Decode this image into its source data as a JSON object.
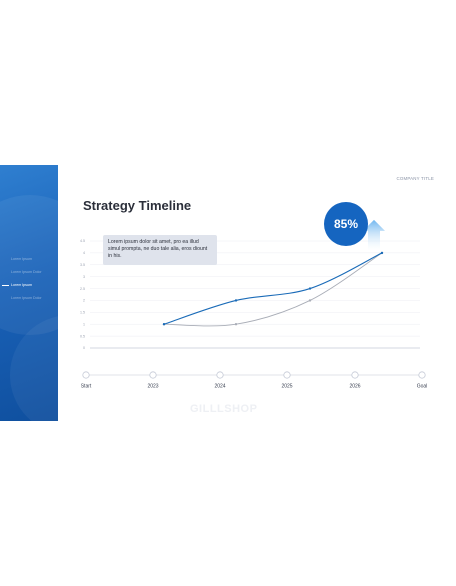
{
  "slide": {
    "company_title": "COMPANY TITLE",
    "title": "Strategy Timeline",
    "note": "Lorem ipsum dolor sit amet, pro ea illud simul prompta, ne duo tale alia, eros diount in his.",
    "watermark": "GILLLSHOP",
    "badge": "85%"
  },
  "sidebar": {
    "items": [
      {
        "label": "Lorem Ipsum",
        "active": false
      },
      {
        "label": "Lorem Ipsum Dolor",
        "active": false
      },
      {
        "label": "Lorem Ipsum",
        "active": true
      },
      {
        "label": "Lorem Ipsum Dolor",
        "active": false
      }
    ]
  },
  "colors": {
    "accent": "#1565c0",
    "series_primary": "#1a6bb8",
    "series_secondary": "#a9adb7",
    "arrow": "#6fb6ef"
  },
  "chart_data": {
    "type": "line",
    "x": [
      "2023",
      "2024",
      "2025",
      "2026"
    ],
    "y_ticks": [
      0,
      0.5,
      1,
      1.5,
      2,
      2.5,
      3,
      3.5,
      4,
      4.5
    ],
    "ylim": [
      0,
      4.5
    ],
    "timeline": [
      "Start",
      "2023",
      "2024",
      "2025",
      "2026",
      "Goal"
    ],
    "series": [
      {
        "values": [
          1,
          2,
          2.5,
          4
        ]
      },
      {
        "values": [
          1,
          1,
          2,
          4
        ]
      }
    ]
  }
}
